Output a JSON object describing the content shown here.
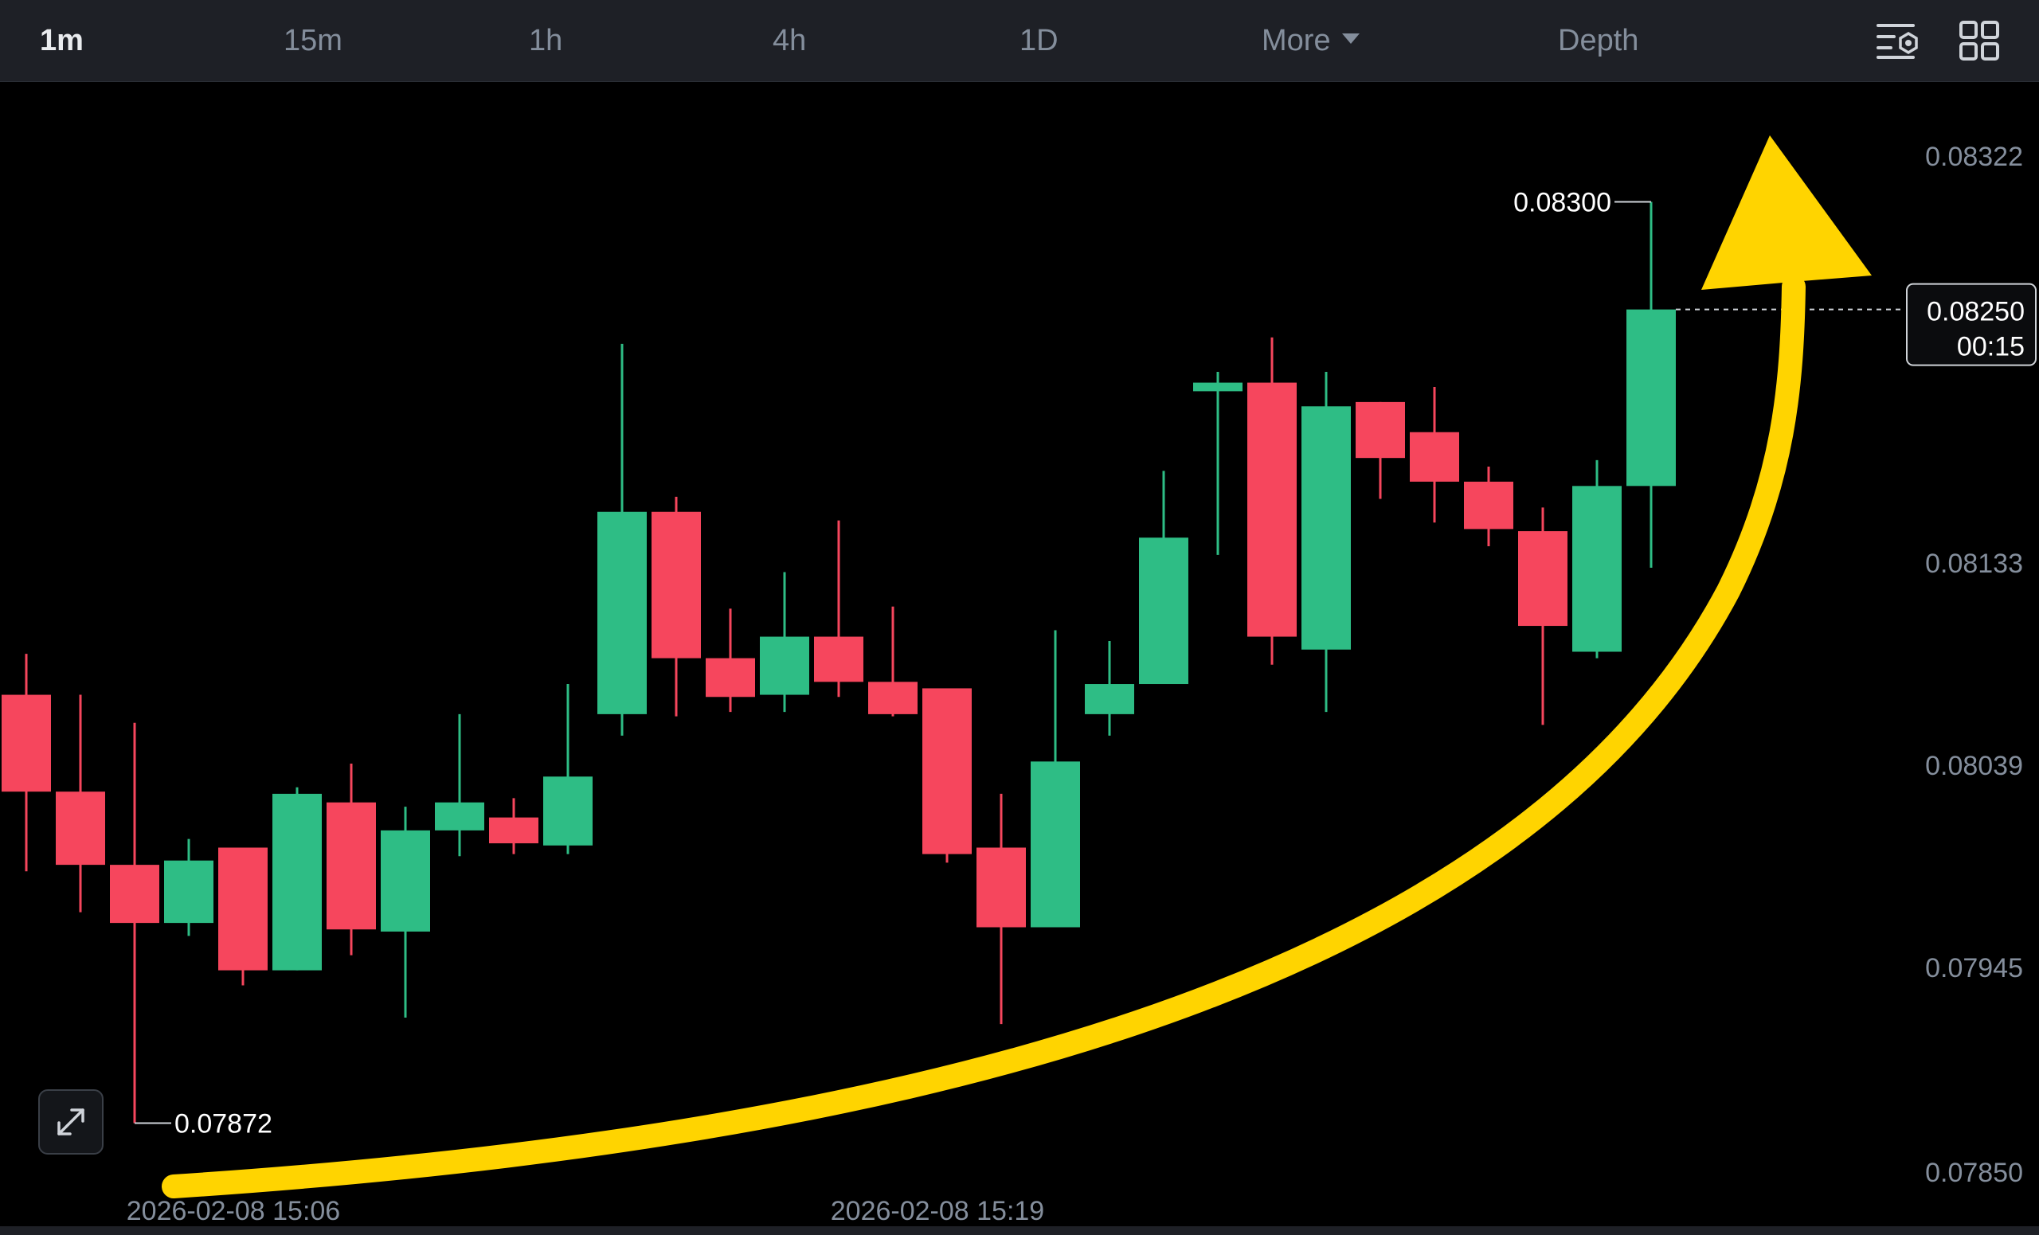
{
  "toolbar": {
    "intervals": [
      "1m",
      "15m",
      "1h",
      "4h",
      "1D"
    ],
    "active_interval": "1m",
    "more_label": "More",
    "depth_label": "Depth",
    "icons": [
      "chart-settings-icon",
      "grid-layout-icon"
    ]
  },
  "colors": {
    "background": "#000000",
    "toolbar_bg": "#1e2026",
    "up": "#2ebd85",
    "down": "#f6465d",
    "axis_text": "#848e9c",
    "annotation_arrow": "#ffd400"
  },
  "chart_data": {
    "type": "candlestick",
    "timeframe": "1m",
    "y_ticks": [
      "0.08322",
      "0.08133",
      "0.08039",
      "0.07945",
      "0.07850"
    ],
    "x_ticks": [
      "2026-02-08 15:06",
      "2026-02-08 15:19"
    ],
    "ylim": [
      0.0785,
      0.08322
    ],
    "high_label": "0.08300",
    "low_label": "0.07872",
    "current_price": "0.08250",
    "countdown": "00:15",
    "candles": [
      {
        "o": 0.08071,
        "h": 0.0809,
        "l": 0.07989,
        "c": 0.08026
      },
      {
        "o": 0.08026,
        "h": 0.08071,
        "l": 0.0797,
        "c": 0.07992
      },
      {
        "o": 0.07992,
        "h": 0.08058,
        "l": 0.07872,
        "c": 0.07965
      },
      {
        "o": 0.07965,
        "h": 0.08004,
        "l": 0.07959,
        "c": 0.07994
      },
      {
        "o": 0.08,
        "h": 0.08,
        "l": 0.07936,
        "c": 0.07943
      },
      {
        "o": 0.07943,
        "h": 0.08028,
        "l": 0.07943,
        "c": 0.08025
      },
      {
        "o": 0.08021,
        "h": 0.08039,
        "l": 0.0795,
        "c": 0.07962
      },
      {
        "o": 0.07961,
        "h": 0.08019,
        "l": 0.07921,
        "c": 0.08008
      },
      {
        "o": 0.08008,
        "h": 0.08062,
        "l": 0.07996,
        "c": 0.08021
      },
      {
        "o": 0.08014,
        "h": 0.08023,
        "l": 0.07997,
        "c": 0.08002
      },
      {
        "o": 0.08001,
        "h": 0.08076,
        "l": 0.07997,
        "c": 0.08033
      },
      {
        "o": 0.08062,
        "h": 0.08234,
        "l": 0.08052,
        "c": 0.08156
      },
      {
        "o": 0.08156,
        "h": 0.08163,
        "l": 0.08061,
        "c": 0.08088
      },
      {
        "o": 0.08088,
        "h": 0.08111,
        "l": 0.08063,
        "c": 0.0807
      },
      {
        "o": 0.08071,
        "h": 0.08128,
        "l": 0.08063,
        "c": 0.08098
      },
      {
        "o": 0.08098,
        "h": 0.08152,
        "l": 0.0807,
        "c": 0.08077
      },
      {
        "o": 0.08077,
        "h": 0.08112,
        "l": 0.08061,
        "c": 0.08062
      },
      {
        "o": 0.08074,
        "h": 0.08074,
        "l": 0.07993,
        "c": 0.07997
      },
      {
        "o": 0.08,
        "h": 0.08025,
        "l": 0.07918,
        "c": 0.07963
      },
      {
        "o": 0.07963,
        "h": 0.08101,
        "l": 0.07963,
        "c": 0.0804
      },
      {
        "o": 0.08062,
        "h": 0.08096,
        "l": 0.08052,
        "c": 0.08076
      },
      {
        "o": 0.08076,
        "h": 0.08175,
        "l": 0.08076,
        "c": 0.08144
      },
      {
        "o": 0.08212,
        "h": 0.08221,
        "l": 0.08136,
        "c": 0.08216
      },
      {
        "o": 0.08216,
        "h": 0.08237,
        "l": 0.08085,
        "c": 0.08098
      },
      {
        "o": 0.08092,
        "h": 0.08221,
        "l": 0.08063,
        "c": 0.08205
      },
      {
        "o": 0.08207,
        "h": 0.08207,
        "l": 0.08162,
        "c": 0.08181
      },
      {
        "o": 0.08193,
        "h": 0.08214,
        "l": 0.08151,
        "c": 0.0817
      },
      {
        "o": 0.0817,
        "h": 0.08177,
        "l": 0.0814,
        "c": 0.08148
      },
      {
        "o": 0.08147,
        "h": 0.08158,
        "l": 0.08057,
        "c": 0.08103
      },
      {
        "o": 0.08091,
        "h": 0.0818,
        "l": 0.08088,
        "c": 0.08168
      },
      {
        "o": 0.08168,
        "h": 0.083,
        "l": 0.0813,
        "c": 0.0825
      }
    ]
  }
}
